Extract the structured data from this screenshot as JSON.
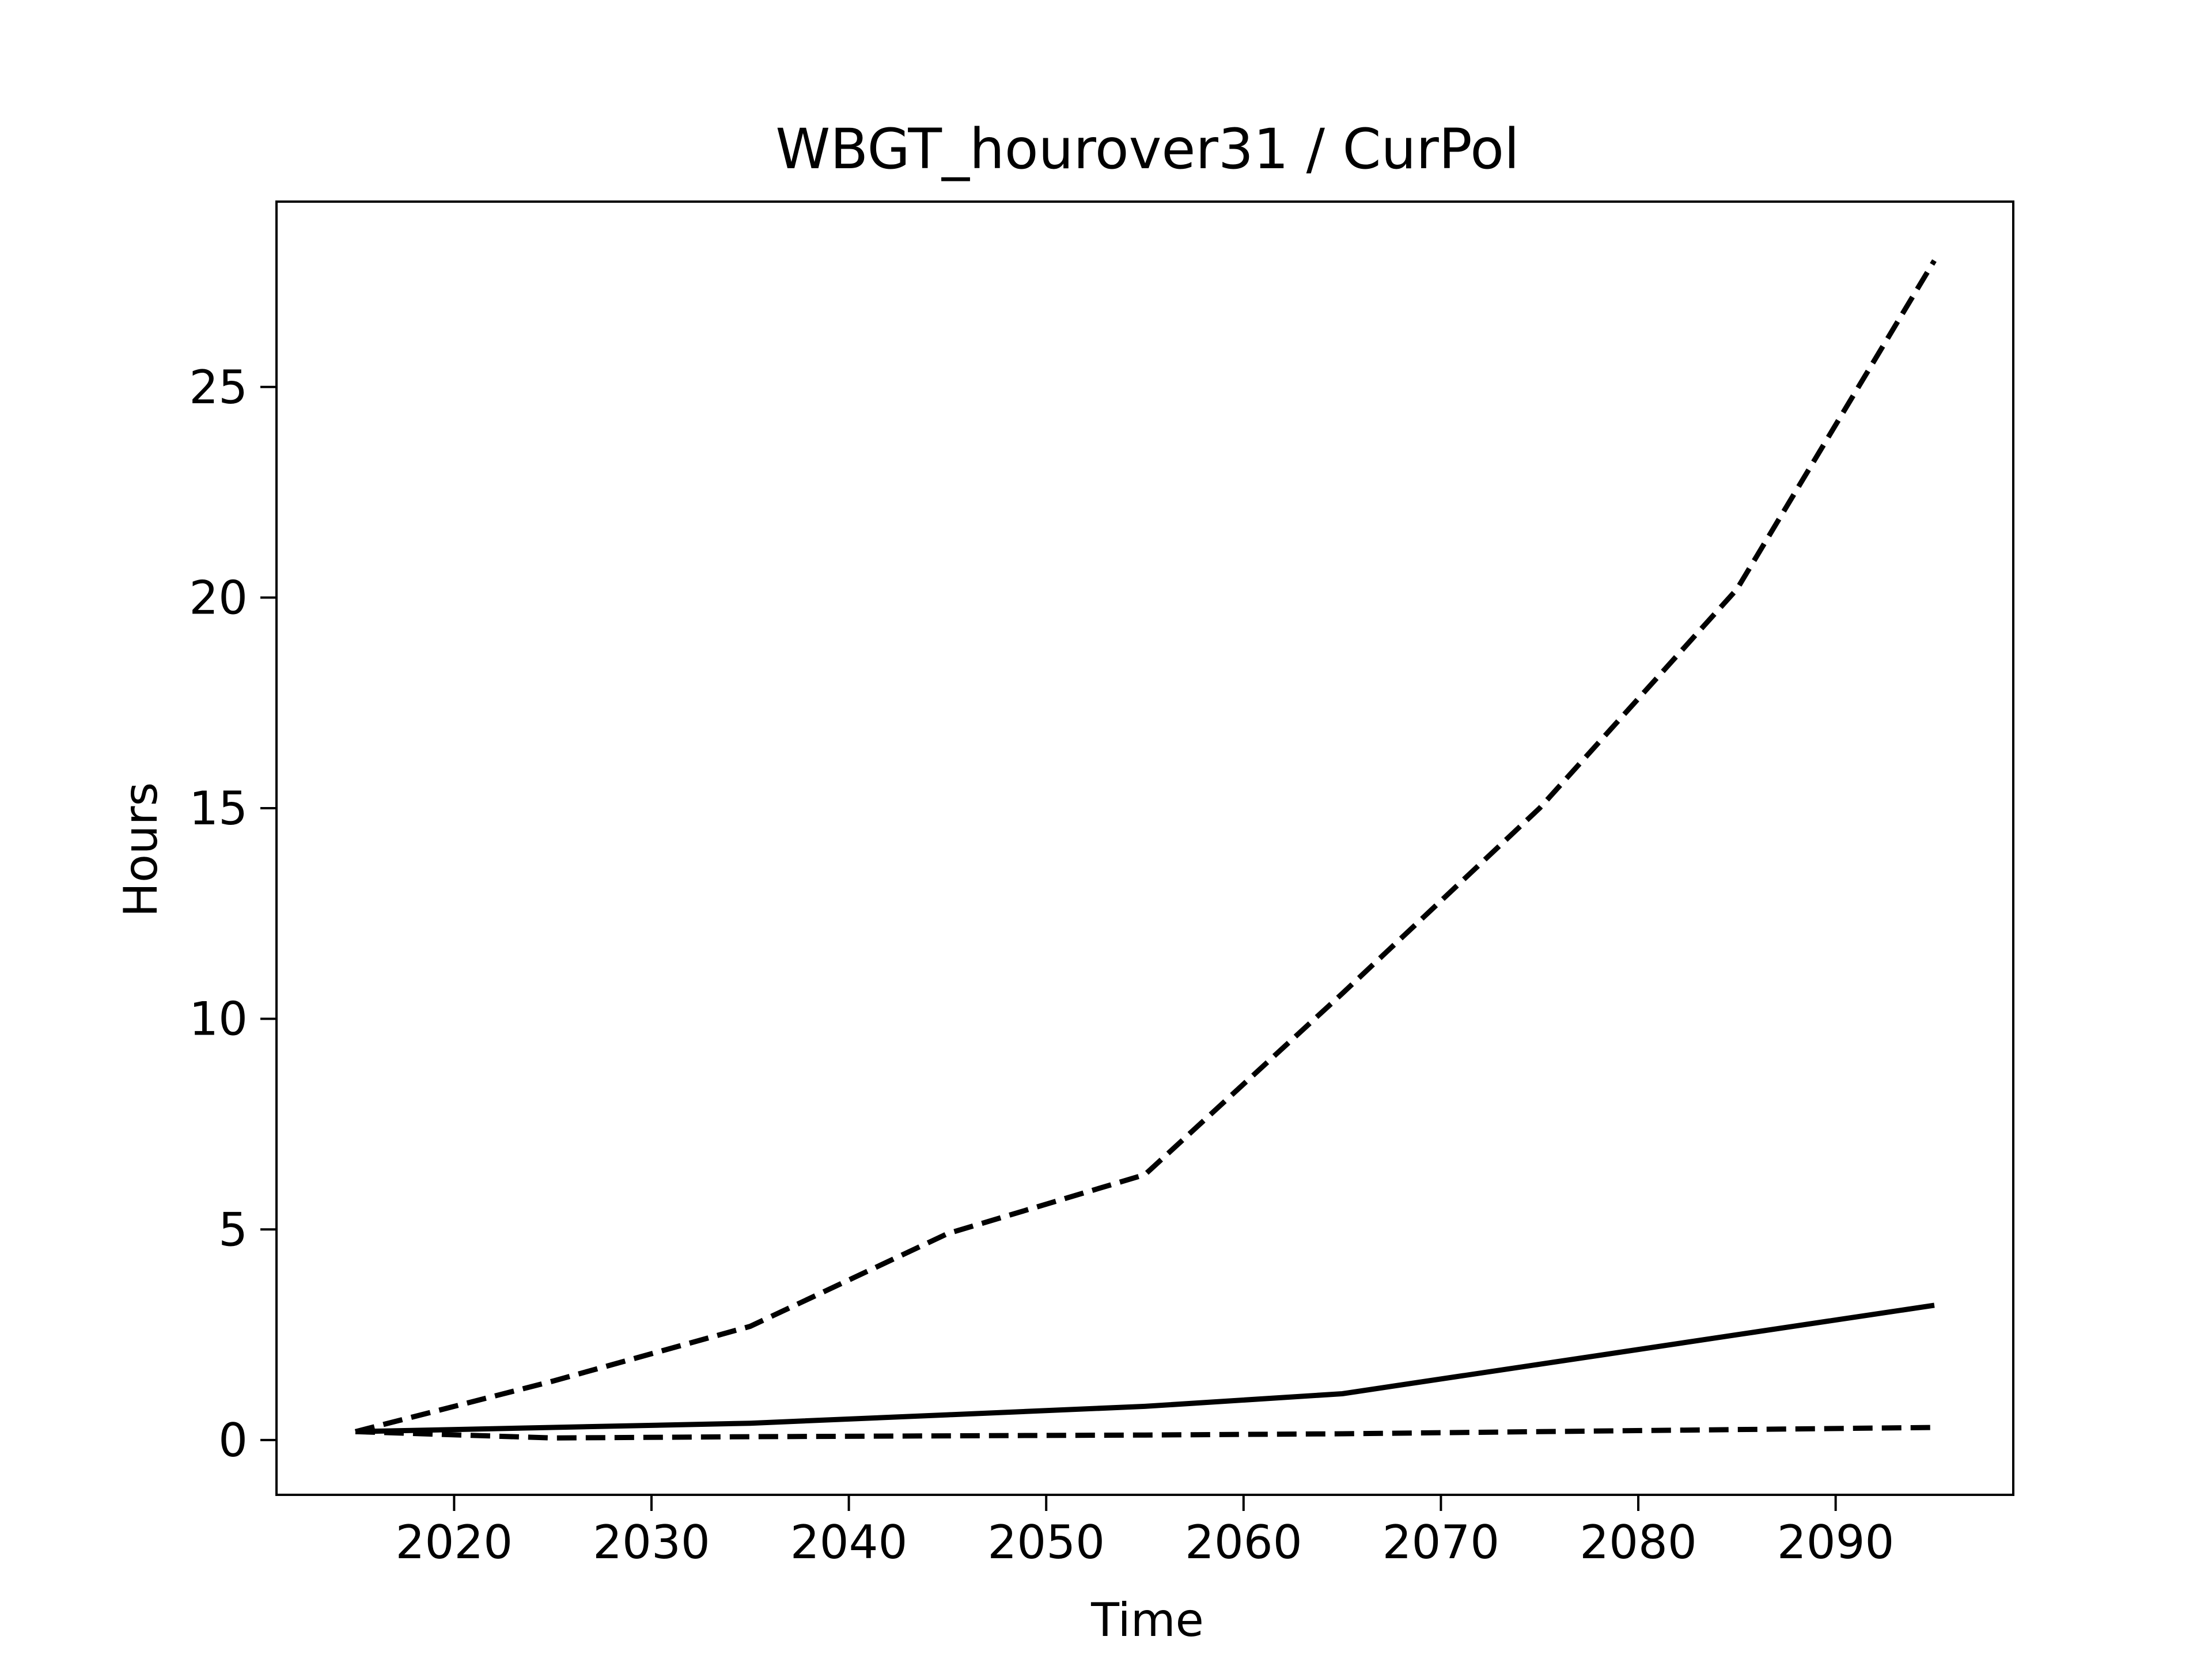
{
  "chart_data": {
    "type": "line",
    "title": "WBGT_hourover31 / CurPol",
    "xlabel": "Time",
    "ylabel": "Hours",
    "xlim": [
      2011,
      2099
    ],
    "ylim": [
      -1.3,
      29.4
    ],
    "xticks": [
      2020,
      2030,
      2040,
      2050,
      2060,
      2070,
      2080,
      2090
    ],
    "yticks": [
      0,
      5,
      10,
      15,
      20,
      25
    ],
    "grid": false,
    "legend": "none",
    "colors": {
      "line": "#000000",
      "frame": "#000000",
      "background": "#ffffff"
    },
    "series": [
      {
        "style": "dashed",
        "x": [
          2015,
          2025,
          2035,
          2045,
          2055,
          2065,
          2075,
          2085,
          2095
        ],
        "y": [
          0.2,
          1.4,
          2.7,
          4.9,
          6.3,
          10.6,
          15.0,
          20.2,
          28.0
        ]
      },
      {
        "style": "solid",
        "x": [
          2015,
          2025,
          2035,
          2045,
          2055,
          2065,
          2075,
          2085,
          2095
        ],
        "y": [
          0.2,
          0.3,
          0.4,
          0.6,
          0.8,
          1.1,
          1.8,
          2.5,
          3.2
        ]
      },
      {
        "style": "dashed",
        "x": [
          2015,
          2025,
          2035,
          2045,
          2055,
          2065,
          2075,
          2085,
          2095
        ],
        "y": [
          0.2,
          0.05,
          0.08,
          0.1,
          0.12,
          0.15,
          0.2,
          0.25,
          0.3
        ]
      }
    ]
  }
}
